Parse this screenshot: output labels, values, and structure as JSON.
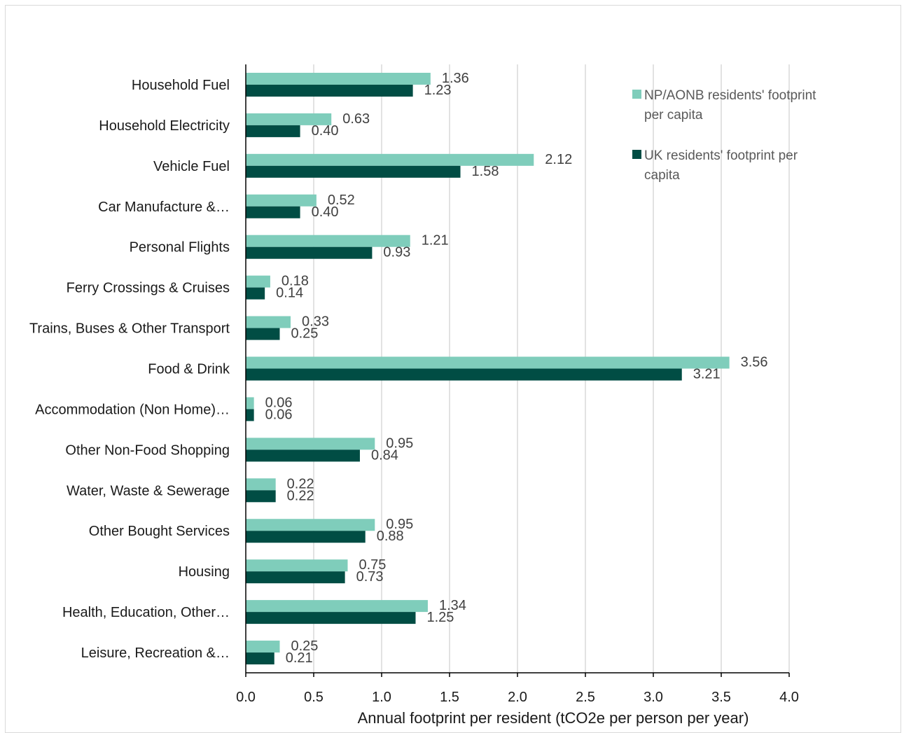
{
  "chart_data": {
    "type": "bar",
    "orientation": "horizontal",
    "title": "",
    "xlabel": "Annual footprint per resident (tCO2e per person per year)",
    "ylabel": "",
    "xlim": [
      0,
      4.0
    ],
    "xticks": [
      "0.0",
      "0.5",
      "1.0",
      "1.5",
      "2.0",
      "2.5",
      "3.0",
      "3.5",
      "4.0"
    ],
    "grid": "vertical",
    "legend_position": "top-right",
    "categories": [
      "Household Fuel",
      "Household Electricity",
      "Vehicle Fuel",
      "Car Manufacture &…",
      "Personal Flights",
      "Ferry Crossings & Cruises",
      "Trains, Buses & Other Transport",
      "Food & Drink",
      "Accommodation (Non Home)…",
      "Other Non-Food Shopping",
      "Water, Waste & Sewerage",
      "Other Bought Services",
      "Housing",
      "Health, Education, Other…",
      "Leisure, Recreation &…"
    ],
    "series": [
      {
        "name": "NP/AONB residents' footprint per capita",
        "color": "#7fcdbb",
        "values": [
          1.36,
          0.63,
          2.12,
          0.52,
          1.21,
          0.18,
          0.33,
          3.56,
          0.06,
          0.95,
          0.22,
          0.95,
          0.75,
          1.34,
          0.25
        ],
        "labels": [
          "1.36",
          "0.63",
          "2.12",
          "0.52",
          "1.21",
          "0.18",
          "0.33",
          "3.56",
          "0.06",
          "0.95",
          "0.22",
          "0.95",
          "0.75",
          "1.34",
          "0.25"
        ]
      },
      {
        "name": "UK residents' footprint per capita",
        "color": "#014d44",
        "values": [
          1.23,
          0.4,
          1.58,
          0.4,
          0.93,
          0.14,
          0.25,
          3.21,
          0.06,
          0.84,
          0.22,
          0.88,
          0.73,
          1.25,
          0.21
        ],
        "labels": [
          "1.23",
          "0.40",
          "1.58",
          "0.40",
          "0.93",
          "0.14",
          "0.25",
          "3.21",
          "0.06",
          "0.84",
          "0.22",
          "0.88",
          "0.73",
          "1.25",
          "0.21"
        ]
      }
    ],
    "legend": {
      "series_1_lines": [
        "NP/AONB residents' footprint",
        "per capita"
      ],
      "series_2_lines": [
        "UK residents' footprint per",
        "capita"
      ]
    }
  }
}
